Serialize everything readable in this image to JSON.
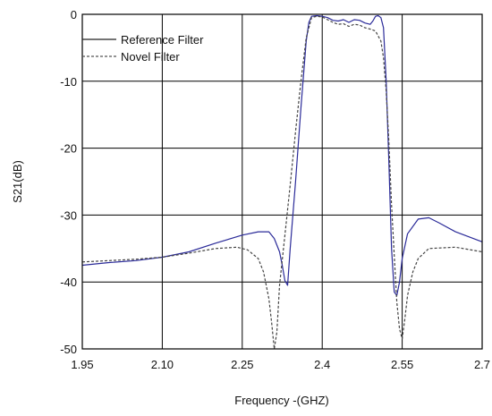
{
  "chart_data": {
    "type": "line",
    "title": "",
    "xlabel": "Frequency  -(GHZ)",
    "ylabel": "S21(dB)",
    "xlim": [
      1.95,
      2.7
    ],
    "ylim": [
      -50,
      0
    ],
    "x_ticks": [
      1.95,
      2.1,
      2.25,
      2.4,
      2.55,
      2.7
    ],
    "x_tick_labels": [
      "1.95",
      "2.10",
      "2.25",
      "2.4",
      "2.55",
      "2.7"
    ],
    "y_ticks": [
      0,
      -10,
      -20,
      -30,
      -40,
      -50
    ],
    "y_tick_labels": [
      "0",
      "-10",
      "-20",
      "-30",
      "-40",
      "-50"
    ],
    "grid": true,
    "legend_position": "top-left",
    "legend": {
      "reference": "Reference Filter",
      "novel": "Novel Filter"
    },
    "series": [
      {
        "name": "Reference Filter",
        "color": "#2b2b99",
        "dash": "solid",
        "x": [
          1.95,
          2.0,
          2.05,
          2.1,
          2.15,
          2.2,
          2.25,
          2.28,
          2.3,
          2.31,
          2.32,
          2.325,
          2.33,
          2.335,
          2.34,
          2.35,
          2.36,
          2.37,
          2.375,
          2.38,
          2.39,
          2.4,
          2.41,
          2.42,
          2.43,
          2.44,
          2.45,
          2.46,
          2.47,
          2.48,
          2.49,
          2.495,
          2.5,
          2.505,
          2.51,
          2.515,
          2.52,
          2.525,
          2.53,
          2.535,
          2.54,
          2.545,
          2.55,
          2.56,
          2.58,
          2.6,
          2.62,
          2.65,
          2.7
        ],
        "y": [
          -37.5,
          -37.1,
          -36.8,
          -36.3,
          -35.5,
          -34.2,
          -33.0,
          -32.5,
          -32.5,
          -33.5,
          -35.5,
          -37.5,
          -39.8,
          -40.5,
          -35.0,
          -25.0,
          -14.0,
          -4.0,
          -1.2,
          -0.3,
          -0.2,
          -0.3,
          -0.5,
          -0.9,
          -1.0,
          -0.8,
          -1.2,
          -0.8,
          -0.9,
          -1.3,
          -1.5,
          -1.0,
          -0.3,
          -0.2,
          -0.5,
          -2.0,
          -10.0,
          -22.0,
          -35.0,
          -41.5,
          -42.0,
          -40.0,
          -36.5,
          -32.8,
          -30.6,
          -30.4,
          -31.2,
          -32.5,
          -34.0
        ]
      },
      {
        "name": "Novel Filter",
        "color": "#444444",
        "dash": "dashed",
        "x": [
          1.95,
          2.0,
          2.05,
          2.1,
          2.15,
          2.2,
          2.24,
          2.26,
          2.28,
          2.29,
          2.3,
          2.305,
          2.31,
          2.315,
          2.32,
          2.33,
          2.34,
          2.35,
          2.36,
          2.37,
          2.38,
          2.39,
          2.4,
          2.41,
          2.42,
          2.43,
          2.44,
          2.45,
          2.46,
          2.47,
          2.48,
          2.49,
          2.5,
          2.51,
          2.515,
          2.52,
          2.525,
          2.53,
          2.535,
          2.54,
          2.545,
          2.55,
          2.555,
          2.56,
          2.57,
          2.58,
          2.6,
          2.65,
          2.7
        ],
        "y": [
          -37.0,
          -36.8,
          -36.6,
          -36.3,
          -35.7,
          -35.0,
          -34.8,
          -35.2,
          -36.5,
          -38.5,
          -42.5,
          -46.0,
          -50.0,
          -47.5,
          -40.5,
          -33.0,
          -25.5,
          -17.5,
          -10.0,
          -3.5,
          -0.5,
          -0.3,
          -0.4,
          -0.8,
          -1.2,
          -1.5,
          -1.4,
          -1.8,
          -1.5,
          -1.6,
          -2.0,
          -2.2,
          -2.5,
          -4.0,
          -6.5,
          -11.5,
          -19.0,
          -28.5,
          -36.0,
          -43.0,
          -47.0,
          -48.5,
          -45.5,
          -42.0,
          -38.5,
          -36.5,
          -35.0,
          -34.8,
          -35.5
        ]
      }
    ]
  }
}
